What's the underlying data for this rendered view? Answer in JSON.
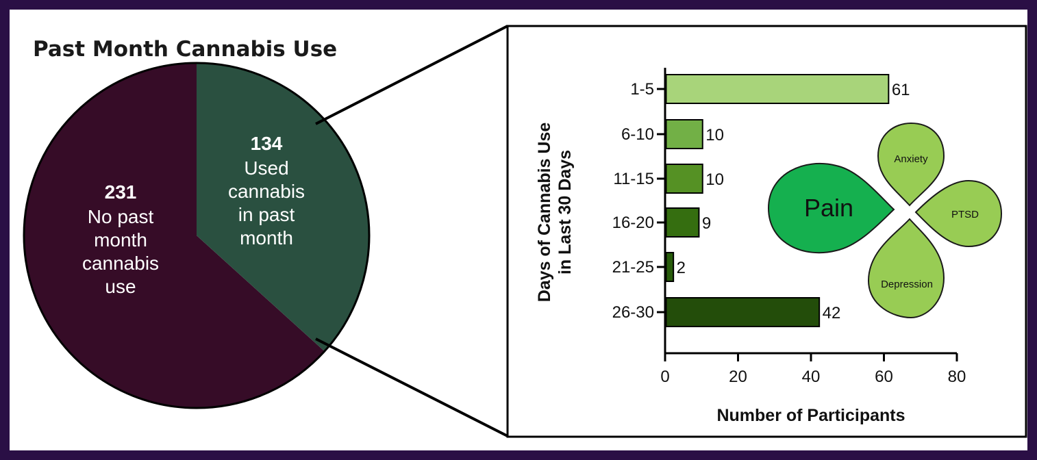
{
  "title": "Past Month Cannabis Use",
  "colors": {
    "background": "#2a0f45",
    "no_use": "#360c27",
    "used": "#2a5040",
    "bars": [
      "#a8d47a",
      "#72b046",
      "#559124",
      "#356e10",
      "#285c0b",
      "#234d0a"
    ],
    "pain": "#15b04f",
    "other_conditions": "#98cc54"
  },
  "chart_data": [
    {
      "type": "pie",
      "slices": [
        {
          "value": 231,
          "count_label": "231",
          "label_lines": [
            "No past",
            "month",
            "cannabis",
            "use"
          ]
        },
        {
          "value": 134,
          "count_label": "134",
          "label_lines": [
            "Used",
            "cannabis",
            "in past",
            "month"
          ]
        }
      ]
    },
    {
      "type": "bar",
      "orientation": "horizontal",
      "categories": [
        "1-5",
        "6-10",
        "11-15",
        "16-20",
        "21-25",
        "26-30"
      ],
      "values": [
        61,
        10,
        10,
        9,
        2,
        42
      ],
      "xlabel": "Number of Participants",
      "ylabel_lines": [
        "Days of Cannabis Use",
        "in Last 30 Days"
      ],
      "xlim": [
        0,
        80
      ],
      "xticks": [
        "0",
        "20",
        "40",
        "60",
        "80"
      ],
      "grid": false,
      "inset": {
        "type": "icon",
        "petals": [
          "Pain",
          "Anxiety",
          "PTSD",
          "Depression"
        ]
      }
    }
  ]
}
